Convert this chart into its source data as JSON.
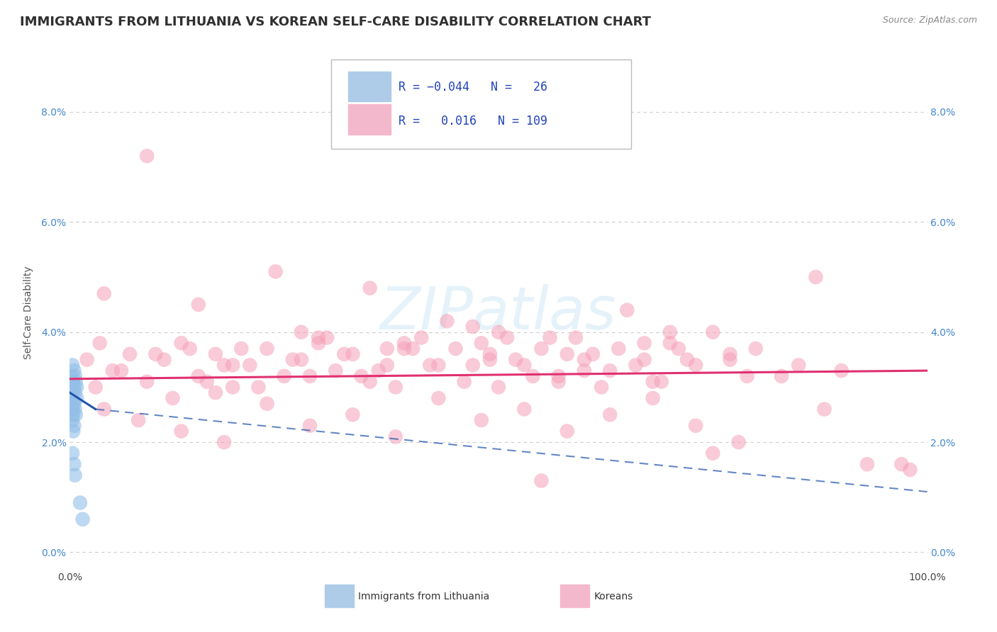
{
  "title": "IMMIGRANTS FROM LITHUANIA VS KOREAN SELF-CARE DISABILITY CORRELATION CHART",
  "source": "Source: ZipAtlas.com",
  "ylabel": "Self-Care Disability",
  "xlim": [
    0,
    100
  ],
  "ylim": [
    -0.3,
    9.0
  ],
  "ytick_vals": [
    0,
    2,
    4,
    6,
    8
  ],
  "ytick_labels": [
    "0.0%",
    "2.0%",
    "4.0%",
    "6.0%",
    "8.0%"
  ],
  "xtick_vals": [
    0,
    100
  ],
  "xtick_labels": [
    "0.0%",
    "100.0%"
  ],
  "watermark": "ZIPatlas",
  "blue_color": "#92bfe8",
  "pink_color": "#f5a0b8",
  "blue_line_color": "#2255aa",
  "pink_line_color": "#e03070",
  "grid_color": "#cccccc",
  "background_color": "#ffffff",
  "title_color": "#303030",
  "title_fontsize": 13,
  "axis_label_fontsize": 10,
  "tick_fontsize": 10,
  "blue_scatter": [
    [
      0.2,
      3.2
    ],
    [
      0.3,
      3.4
    ],
    [
      0.5,
      3.3
    ],
    [
      0.4,
      3.1
    ],
    [
      0.6,
      3.2
    ],
    [
      0.8,
      3.0
    ],
    [
      0.3,
      2.9
    ],
    [
      0.7,
      3.1
    ],
    [
      0.2,
      2.8
    ],
    [
      0.5,
      3.0
    ],
    [
      0.4,
      2.7
    ],
    [
      0.6,
      2.9
    ],
    [
      0.3,
      2.6
    ],
    [
      0.8,
      2.8
    ],
    [
      0.5,
      2.7
    ],
    [
      0.4,
      2.5
    ],
    [
      0.6,
      2.6
    ],
    [
      0.3,
      2.4
    ],
    [
      0.5,
      2.3
    ],
    [
      0.7,
      2.5
    ],
    [
      0.4,
      2.2
    ],
    [
      0.3,
      1.8
    ],
    [
      0.5,
      1.6
    ],
    [
      0.6,
      1.4
    ],
    [
      1.2,
      0.9
    ],
    [
      1.5,
      0.6
    ]
  ],
  "pink_scatter": [
    [
      2.0,
      3.5
    ],
    [
      3.5,
      3.8
    ],
    [
      5.0,
      3.3
    ],
    [
      7.0,
      3.6
    ],
    [
      9.0,
      3.1
    ],
    [
      11.0,
      3.5
    ],
    [
      13.0,
      3.8
    ],
    [
      15.0,
      3.2
    ],
    [
      17.0,
      3.6
    ],
    [
      19.0,
      3.0
    ],
    [
      21.0,
      3.4
    ],
    [
      23.0,
      3.7
    ],
    [
      25.0,
      3.2
    ],
    [
      27.0,
      3.5
    ],
    [
      29.0,
      3.8
    ],
    [
      31.0,
      3.3
    ],
    [
      33.0,
      3.6
    ],
    [
      35.0,
      3.1
    ],
    [
      37.0,
      3.4
    ],
    [
      39.0,
      3.7
    ],
    [
      41.0,
      3.9
    ],
    [
      43.0,
      3.4
    ],
    [
      45.0,
      3.7
    ],
    [
      47.0,
      4.1
    ],
    [
      49.0,
      3.6
    ],
    [
      51.0,
      3.9
    ],
    [
      53.0,
      3.4
    ],
    [
      55.0,
      3.7
    ],
    [
      57.0,
      3.2
    ],
    [
      59.0,
      3.9
    ],
    [
      61.0,
      3.6
    ],
    [
      63.0,
      3.3
    ],
    [
      65.0,
      4.4
    ],
    [
      67.0,
      3.5
    ],
    [
      69.0,
      3.1
    ],
    [
      71.0,
      3.7
    ],
    [
      73.0,
      3.4
    ],
    [
      75.0,
      4.0
    ],
    [
      77.0,
      3.6
    ],
    [
      79.0,
      3.2
    ],
    [
      4.0,
      4.7
    ],
    [
      9.0,
      7.2
    ],
    [
      14.0,
      3.7
    ],
    [
      19.0,
      3.4
    ],
    [
      24.0,
      5.1
    ],
    [
      29.0,
      3.9
    ],
    [
      34.0,
      3.2
    ],
    [
      39.0,
      3.8
    ],
    [
      44.0,
      4.2
    ],
    [
      49.0,
      3.5
    ],
    [
      3.0,
      3.0
    ],
    [
      6.0,
      3.3
    ],
    [
      10.0,
      3.6
    ],
    [
      12.0,
      2.8
    ],
    [
      16.0,
      3.1
    ],
    [
      18.0,
      3.4
    ],
    [
      20.0,
      3.7
    ],
    [
      22.0,
      3.0
    ],
    [
      26.0,
      3.5
    ],
    [
      28.0,
      3.2
    ],
    [
      30.0,
      3.9
    ],
    [
      32.0,
      3.6
    ],
    [
      36.0,
      3.3
    ],
    [
      38.0,
      3.0
    ],
    [
      40.0,
      3.7
    ],
    [
      42.0,
      3.4
    ],
    [
      46.0,
      3.1
    ],
    [
      48.0,
      3.8
    ],
    [
      50.0,
      4.0
    ],
    [
      52.0,
      3.5
    ],
    [
      54.0,
      3.2
    ],
    [
      56.0,
      3.9
    ],
    [
      58.0,
      3.6
    ],
    [
      60.0,
      3.3
    ],
    [
      62.0,
      3.0
    ],
    [
      64.0,
      3.7
    ],
    [
      66.0,
      3.4
    ],
    [
      68.0,
      3.1
    ],
    [
      70.0,
      3.8
    ],
    [
      72.0,
      3.5
    ],
    [
      17.0,
      2.9
    ],
    [
      27.0,
      4.0
    ],
    [
      37.0,
      3.7
    ],
    [
      47.0,
      3.4
    ],
    [
      57.0,
      3.1
    ],
    [
      67.0,
      3.8
    ],
    [
      77.0,
      3.5
    ],
    [
      87.0,
      5.0
    ],
    [
      97.0,
      1.6
    ],
    [
      4.0,
      2.6
    ],
    [
      8.0,
      2.4
    ],
    [
      13.0,
      2.2
    ],
    [
      18.0,
      2.0
    ],
    [
      23.0,
      2.7
    ],
    [
      28.0,
      2.3
    ],
    [
      33.0,
      2.5
    ],
    [
      38.0,
      2.1
    ],
    [
      43.0,
      2.8
    ],
    [
      48.0,
      2.4
    ],
    [
      53.0,
      2.6
    ],
    [
      58.0,
      2.2
    ],
    [
      63.0,
      2.5
    ],
    [
      68.0,
      2.8
    ],
    [
      73.0,
      2.3
    ],
    [
      78.0,
      2.0
    ],
    [
      83.0,
      3.2
    ],
    [
      88.0,
      2.6
    ],
    [
      93.0,
      1.6
    ],
    [
      98.0,
      1.5
    ],
    [
      55.0,
      1.3
    ],
    [
      75.0,
      1.8
    ],
    [
      85.0,
      3.4
    ],
    [
      60.0,
      3.5
    ],
    [
      70.0,
      4.0
    ],
    [
      80.0,
      3.7
    ],
    [
      90.0,
      3.3
    ],
    [
      15.0,
      4.5
    ],
    [
      35.0,
      4.8
    ],
    [
      50.0,
      3.0
    ]
  ],
  "blue_trend_x0": 0,
  "blue_trend_y0": 2.9,
  "blue_trend_x1": 3.0,
  "blue_trend_y1": 2.6,
  "blue_dash_x0": 3.0,
  "blue_dash_y0": 2.6,
  "blue_dash_x1": 100,
  "blue_dash_y1": 1.1,
  "pink_trend_x0": 0,
  "pink_trend_y0": 3.15,
  "pink_trend_x1": 100,
  "pink_trend_y1": 3.3
}
